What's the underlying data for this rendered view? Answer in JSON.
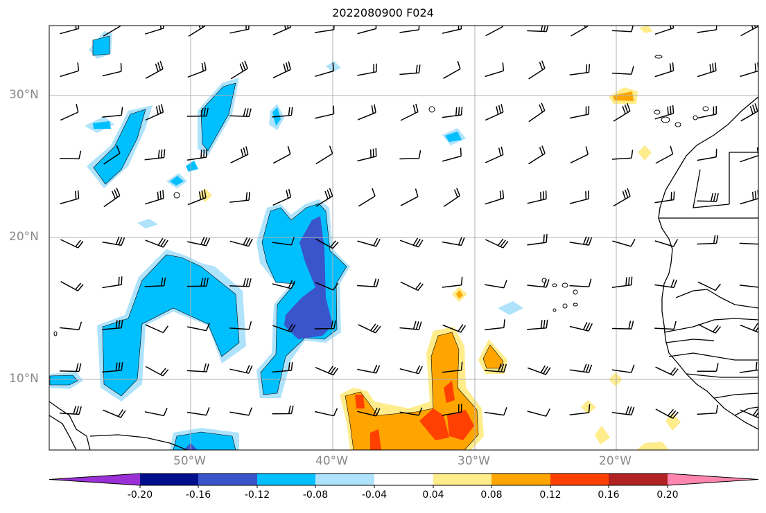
{
  "title": "2022080900 F024",
  "lat_labels": [
    "30°N",
    "20°N",
    "10°N"
  ],
  "lon_labels": [
    "50°W",
    "40°W",
    "30°W",
    "20°W"
  ],
  "colorbar": {
    "ticks": [
      "-0.20",
      "-0.16",
      "-0.12",
      "-0.08",
      "-0.04",
      "0.04",
      "0.08",
      "0.12",
      "0.16",
      "0.20"
    ],
    "colors": [
      "#9b30d6",
      "#000f8c",
      "#3a54cc",
      "#00bfff",
      "#aee3fb",
      "#ffffff",
      "#ffec8b",
      "#ffa500",
      "#ff4000",
      "#b22222",
      "#ff86b0"
    ]
  },
  "chart_data": {
    "type": "heatmap",
    "title": "2022080900 F024",
    "x_range": [
      "60°W",
      "10°W"
    ],
    "y_range": [
      "5°N",
      "35°N"
    ],
    "grid": true
  }
}
